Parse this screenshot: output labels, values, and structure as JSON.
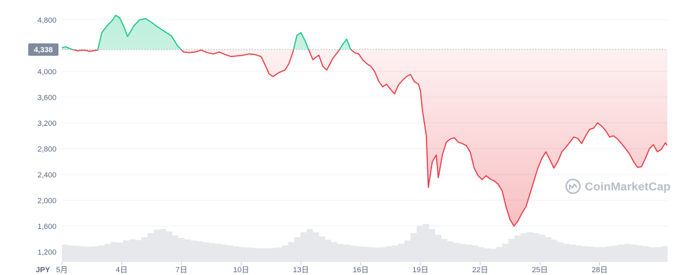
{
  "chart_data": {
    "type": "line",
    "currency_label": "JPY",
    "baseline": {
      "value": 4338,
      "label": "4,338"
    },
    "ylim": [
      1000,
      5000
    ],
    "yticks": [
      {
        "value": 1200,
        "label": "1,200"
      },
      {
        "value": 1600,
        "label": "1,600"
      },
      {
        "value": 2000,
        "label": "2,000"
      },
      {
        "value": 2400,
        "label": "2,400"
      },
      {
        "value": 2800,
        "label": "2,800"
      },
      {
        "value": 3200,
        "label": "3,200"
      },
      {
        "value": 3600,
        "label": "3,600"
      },
      {
        "value": 4000,
        "label": "4,000"
      },
      {
        "value": 4800,
        "label": "4,800"
      }
    ],
    "xlim": [
      1,
      31.4
    ],
    "xticks": [
      {
        "value": 1,
        "label": "5月"
      },
      {
        "value": 4,
        "label": "4日"
      },
      {
        "value": 7,
        "label": "7日"
      },
      {
        "value": 10,
        "label": "10日"
      },
      {
        "value": 13,
        "label": "13日"
      },
      {
        "value": 16,
        "label": "16日"
      },
      {
        "value": 19,
        "label": "19日"
      },
      {
        "value": 22,
        "label": "22日"
      },
      {
        "value": 25,
        "label": "25日"
      },
      {
        "value": 28,
        "label": "28日"
      }
    ],
    "price_points": [
      [
        0.9,
        4360
      ],
      [
        1.2,
        4380
      ],
      [
        1.5,
        4340
      ],
      [
        1.8,
        4320
      ],
      [
        2.1,
        4330
      ],
      [
        2.4,
        4310
      ],
      [
        2.8,
        4330
      ],
      [
        3.0,
        4600
      ],
      [
        3.3,
        4720
      ],
      [
        3.5,
        4780
      ],
      [
        3.7,
        4870
      ],
      [
        3.9,
        4830
      ],
      [
        4.1,
        4700
      ],
      [
        4.3,
        4540
      ],
      [
        4.6,
        4700
      ],
      [
        4.9,
        4800
      ],
      [
        5.2,
        4820
      ],
      [
        5.5,
        4760
      ],
      [
        5.8,
        4690
      ],
      [
        6.2,
        4610
      ],
      [
        6.5,
        4550
      ],
      [
        6.8,
        4400
      ],
      [
        7.1,
        4300
      ],
      [
        7.4,
        4290
      ],
      [
        7.7,
        4300
      ],
      [
        8.0,
        4330
      ],
      [
        8.3,
        4290
      ],
      [
        8.6,
        4270
      ],
      [
        8.9,
        4300
      ],
      [
        9.2,
        4260
      ],
      [
        9.5,
        4230
      ],
      [
        9.8,
        4240
      ],
      [
        10.1,
        4250
      ],
      [
        10.4,
        4270
      ],
      [
        10.7,
        4260
      ],
      [
        11.0,
        4230
      ],
      [
        11.2,
        4100
      ],
      [
        11.4,
        3960
      ],
      [
        11.6,
        3920
      ],
      [
        11.9,
        3980
      ],
      [
        12.2,
        4020
      ],
      [
        12.4,
        4120
      ],
      [
        12.6,
        4300
      ],
      [
        12.8,
        4560
      ],
      [
        13.0,
        4600
      ],
      [
        13.2,
        4480
      ],
      [
        13.4,
        4330
      ],
      [
        13.6,
        4180
      ],
      [
        13.9,
        4250
      ],
      [
        14.1,
        4080
      ],
      [
        14.3,
        4020
      ],
      [
        14.6,
        4200
      ],
      [
        14.9,
        4320
      ],
      [
        15.1,
        4420
      ],
      [
        15.3,
        4500
      ],
      [
        15.5,
        4340
      ],
      [
        15.7,
        4290
      ],
      [
        15.9,
        4270
      ],
      [
        16.1,
        4180
      ],
      [
        16.3,
        4120
      ],
      [
        16.5,
        4080
      ],
      [
        16.7,
        4000
      ],
      [
        16.9,
        3850
      ],
      [
        17.1,
        3760
      ],
      [
        17.3,
        3800
      ],
      [
        17.5,
        3720
      ],
      [
        17.7,
        3650
      ],
      [
        17.9,
        3790
      ],
      [
        18.1,
        3860
      ],
      [
        18.3,
        3920
      ],
      [
        18.5,
        3950
      ],
      [
        18.7,
        3840
      ],
      [
        18.9,
        3800
      ],
      [
        19.0,
        3700
      ],
      [
        19.1,
        3400
      ],
      [
        19.2,
        3200
      ],
      [
        19.3,
        3000
      ],
      [
        19.4,
        2200
      ],
      [
        19.6,
        2600
      ],
      [
        19.8,
        2700
      ],
      [
        19.9,
        2350
      ],
      [
        20.1,
        2700
      ],
      [
        20.3,
        2900
      ],
      [
        20.5,
        2950
      ],
      [
        20.7,
        2970
      ],
      [
        20.9,
        2900
      ],
      [
        21.1,
        2880
      ],
      [
        21.3,
        2850
      ],
      [
        21.5,
        2750
      ],
      [
        21.7,
        2500
      ],
      [
        21.9,
        2380
      ],
      [
        22.1,
        2320
      ],
      [
        22.3,
        2380
      ],
      [
        22.5,
        2330
      ],
      [
        22.7,
        2300
      ],
      [
        22.9,
        2250
      ],
      [
        23.1,
        2150
      ],
      [
        23.3,
        1900
      ],
      [
        23.5,
        1700
      ],
      [
        23.7,
        1600
      ],
      [
        23.9,
        1680
      ],
      [
        24.1,
        1800
      ],
      [
        24.3,
        1900
      ],
      [
        24.5,
        2100
      ],
      [
        24.7,
        2300
      ],
      [
        24.9,
        2500
      ],
      [
        25.1,
        2650
      ],
      [
        25.3,
        2750
      ],
      [
        25.5,
        2630
      ],
      [
        25.7,
        2500
      ],
      [
        25.9,
        2600
      ],
      [
        26.1,
        2750
      ],
      [
        26.3,
        2820
      ],
      [
        26.5,
        2900
      ],
      [
        26.7,
        2980
      ],
      [
        26.9,
        2960
      ],
      [
        27.1,
        2880
      ],
      [
        27.3,
        3000
      ],
      [
        27.5,
        3100
      ],
      [
        27.7,
        3120
      ],
      [
        27.9,
        3200
      ],
      [
        28.1,
        3150
      ],
      [
        28.3,
        3080
      ],
      [
        28.5,
        2980
      ],
      [
        28.7,
        3000
      ],
      [
        28.9,
        2950
      ],
      [
        29.1,
        2880
      ],
      [
        29.3,
        2800
      ],
      [
        29.5,
        2720
      ],
      [
        29.7,
        2600
      ],
      [
        29.9,
        2510
      ],
      [
        30.1,
        2520
      ],
      [
        30.3,
        2650
      ],
      [
        30.5,
        2800
      ],
      [
        30.7,
        2860
      ],
      [
        30.9,
        2750
      ],
      [
        31.1,
        2790
      ],
      [
        31.3,
        2890
      ],
      [
        31.4,
        2850
      ]
    ],
    "volume_relative": [
      0.42,
      0.4,
      0.39,
      0.38,
      0.37,
      0.38,
      0.4,
      0.44,
      0.48,
      0.47,
      0.52,
      0.55,
      0.53,
      0.6,
      0.7,
      0.78,
      0.8,
      0.74,
      0.64,
      0.58,
      0.55,
      0.52,
      0.5,
      0.48,
      0.46,
      0.44,
      0.42,
      0.4,
      0.38,
      0.36,
      0.35,
      0.34,
      0.33,
      0.33,
      0.34,
      0.35,
      0.4,
      0.48,
      0.6,
      0.72,
      0.8,
      0.72,
      0.62,
      0.54,
      0.48,
      0.44,
      0.42,
      0.4,
      0.38,
      0.37,
      0.36,
      0.35,
      0.36,
      0.38,
      0.4,
      0.44,
      0.52,
      0.7,
      0.88,
      0.92,
      0.8,
      0.66,
      0.56,
      0.5,
      0.46,
      0.44,
      0.42,
      0.4,
      0.36,
      0.33,
      0.32,
      0.36,
      0.44,
      0.56,
      0.64,
      0.7,
      0.72,
      0.7,
      0.66,
      0.6,
      0.54,
      0.48,
      0.44,
      0.42,
      0.4,
      0.38,
      0.37,
      0.36,
      0.36,
      0.38,
      0.4,
      0.42,
      0.44,
      0.42,
      0.4,
      0.38,
      0.36,
      0.36,
      0.38
    ],
    "colors": {
      "up": "#16c784",
      "down": "#ea3943",
      "up_fill": "#16c784",
      "down_fill": "#ea3943",
      "volume": "#e6e8eb",
      "grid": "#eff2f5",
      "axis_text": "#58667e",
      "baseline_badge": "#808a9d",
      "watermark": "#b6bec9"
    }
  },
  "watermark": {
    "text": "CoinMarketCap",
    "icon": "coinmarketcap-logo-icon"
  }
}
